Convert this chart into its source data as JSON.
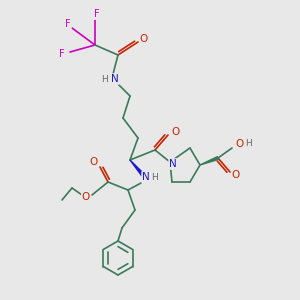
{
  "background_color": "#e8e8e8",
  "bond_color": "#3a7a5a",
  "atom_colors": {
    "N": "#1a1acc",
    "O": "#cc2200",
    "F": "#cc00bb",
    "H": "#666666",
    "C": "#3a7a5a"
  },
  "figsize": [
    3.0,
    3.0
  ],
  "dpi": 100
}
